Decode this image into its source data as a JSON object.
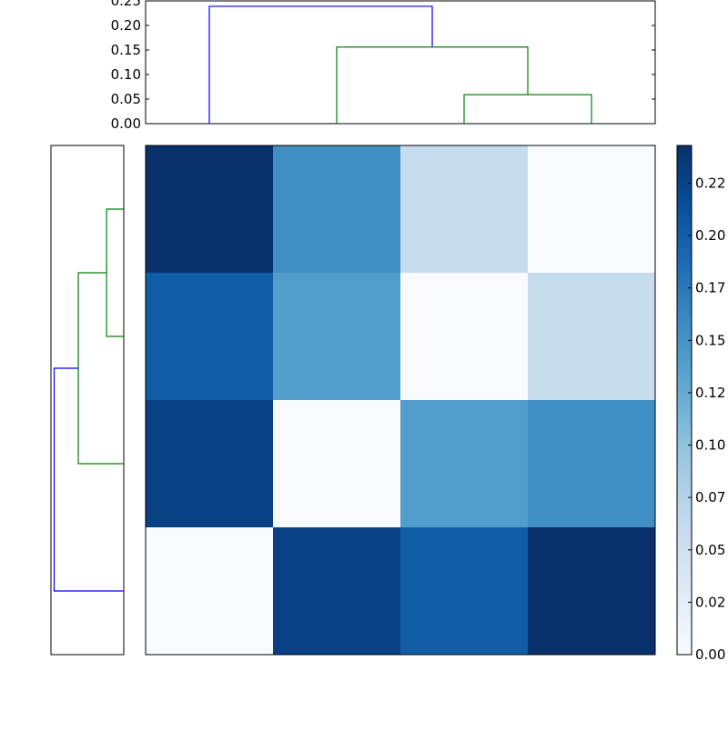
{
  "chart_data": [
    {
      "type": "line",
      "subtype": "dendrogram",
      "orientation": "top",
      "ylim": [
        0,
        0.25
      ],
      "yticks": [
        "0.00",
        "0.05",
        "0.10",
        "0.15",
        "0.20",
        "0.25"
      ],
      "leaf_order": [
        0,
        1,
        2,
        3
      ],
      "links": [
        {
          "left": 2,
          "right": 3,
          "height": 0.059,
          "color": "#008000"
        },
        {
          "left": 1,
          "right": "2-3",
          "height": 0.156,
          "color": "#008000"
        },
        {
          "left": 0,
          "right": "1-2-3",
          "height": 0.239,
          "color": "#0000ff"
        }
      ]
    },
    {
      "type": "line",
      "subtype": "dendrogram",
      "orientation": "left",
      "xlim": [
        0.25,
        0
      ],
      "leaf_order": [
        0,
        1,
        2,
        3
      ],
      "links": [
        {
          "left": 0,
          "right": 1,
          "height": 0.059,
          "color": "#008000"
        },
        {
          "left": "0-1",
          "right": 2,
          "height": 0.156,
          "color": "#008000"
        },
        {
          "left": "0-1-2",
          "right": 3,
          "height": 0.239,
          "color": "#0000ff"
        }
      ]
    },
    {
      "type": "heatmap",
      "colormap": "Blues",
      "vmin": 0,
      "vmax": 0.243,
      "values": [
        [
          0.243,
          0.155,
          0.06,
          0.0
        ],
        [
          0.2,
          0.14,
          0.0,
          0.06
        ],
        [
          0.228,
          0.0,
          0.14,
          0.155
        ],
        [
          0.0,
          0.228,
          0.2,
          0.243
        ]
      ],
      "colorbar_ticks": [
        {
          "value": 0.0,
          "label": "0.00"
        },
        {
          "value": 0.025,
          "label": "0.02"
        },
        {
          "value": 0.05,
          "label": "0.05"
        },
        {
          "value": 0.075,
          "label": "0.07"
        },
        {
          "value": 0.1,
          "label": "0.10"
        },
        {
          "value": 0.125,
          "label": "0.12"
        },
        {
          "value": 0.15,
          "label": "0.15"
        },
        {
          "value": 0.175,
          "label": "0.17"
        },
        {
          "value": 0.2,
          "label": "0.20"
        },
        {
          "value": 0.225,
          "label": "0.22"
        }
      ]
    }
  ]
}
